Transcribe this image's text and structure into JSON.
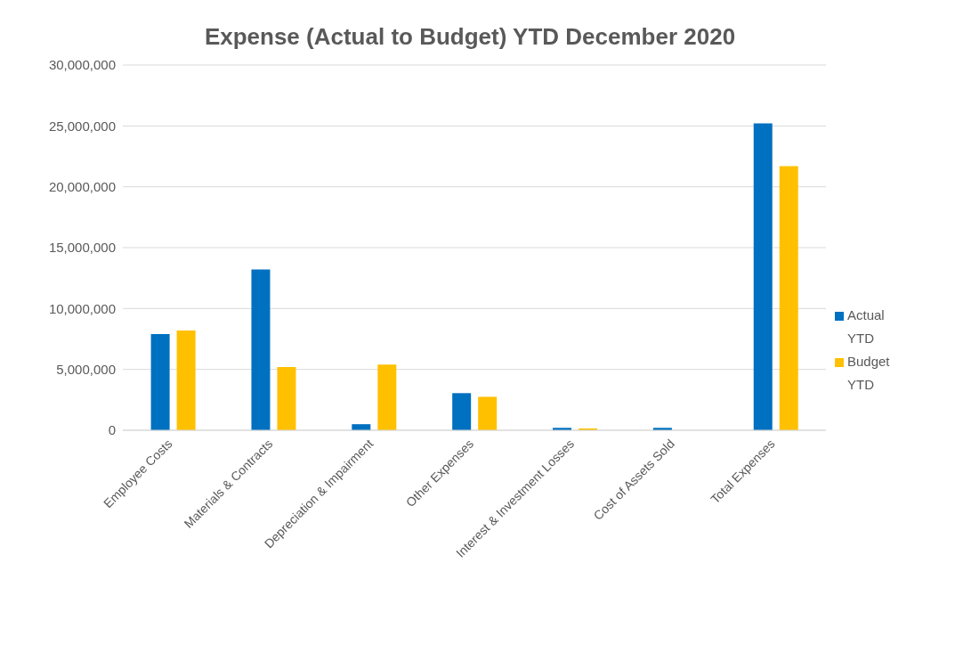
{
  "chart_data": {
    "type": "bar",
    "title": "Expense (Actual to Budget) YTD December 2020",
    "categories": [
      "Employee Costs",
      "Materials & Contracts",
      "Depreciation & Impairment",
      "Other Expenses",
      "Interest & Investment Losses",
      "Cost of Assets Sold",
      "Total Expenses"
    ],
    "series": [
      {
        "name": "Actual YTD",
        "color": "#0070c0",
        "values": [
          7900000,
          13200000,
          500000,
          3050000,
          200000,
          200000,
          25200000
        ]
      },
      {
        "name": "Budget YTD",
        "color": "#ffc000",
        "values": [
          8200000,
          5200000,
          5400000,
          2750000,
          150000,
          0,
          21700000
        ]
      }
    ],
    "ylim": [
      0,
      30000000
    ],
    "yticks": [
      {
        "value": 0,
        "label": "0"
      },
      {
        "value": 5000000,
        "label": "5,000,000"
      },
      {
        "value": 10000000,
        "label": "10,000,000"
      },
      {
        "value": 15000000,
        "label": "15,000,000"
      },
      {
        "value": 20000000,
        "label": "20,000,000"
      },
      {
        "value": 25000000,
        "label": "25,000,000"
      },
      {
        "value": 30000000,
        "label": "30,000,000"
      }
    ],
    "grid": "y",
    "legend": "right"
  }
}
